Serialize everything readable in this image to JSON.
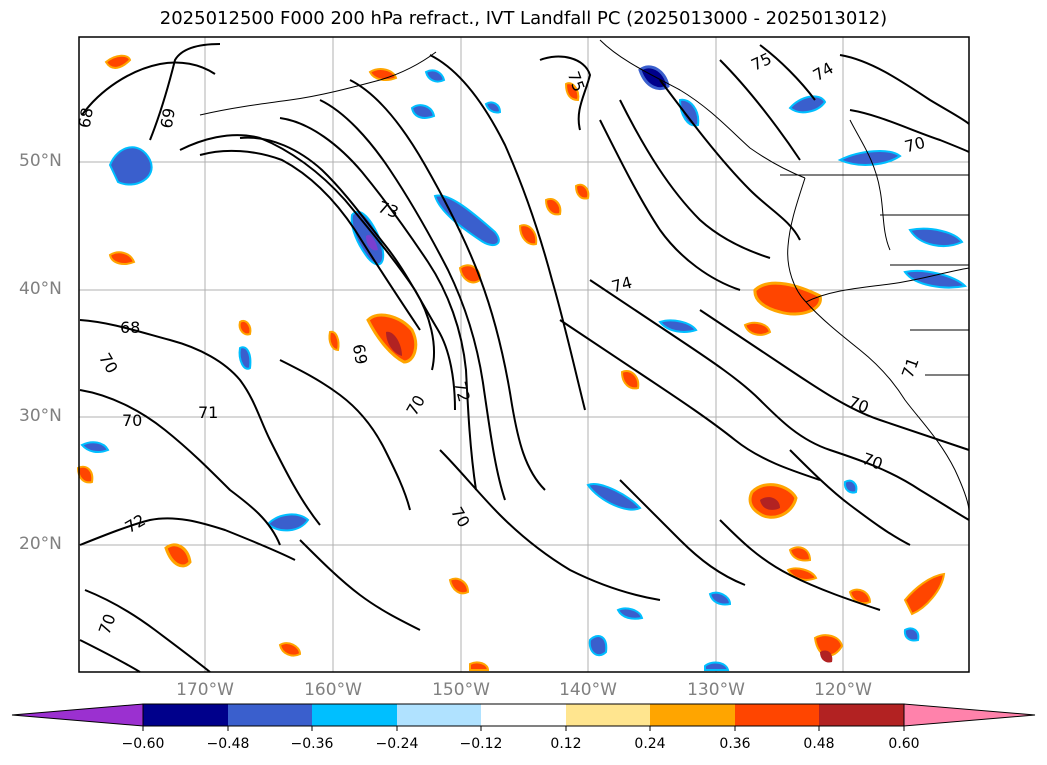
{
  "title": "2025012500 F000 200 hPa refract., IVT Landfall PC (2025013000 - 2025013012)",
  "lat_labels": [
    "50°N",
    "40°N",
    "30°N",
    "20°N"
  ],
  "lon_labels": [
    "170°W",
    "160°W",
    "150°W",
    "140°W",
    "130°W",
    "120°W"
  ],
  "contour_labels": [
    "68",
    "69",
    "75",
    "75",
    "74",
    "70",
    "73",
    "74",
    "69",
    "68",
    "70",
    "72",
    "70",
    "70",
    "71",
    "70",
    "72",
    "71",
    "70",
    "70"
  ],
  "colorbar": {
    "ticks": [
      "−0.60",
      "−0.48",
      "−0.36",
      "−0.24",
      "−0.12",
      "0.12",
      "0.24",
      "0.36",
      "0.48",
      "0.60"
    ],
    "colors": [
      "#9b30d0",
      "#00008b",
      "#3a5fcd",
      "#00bfff",
      "#b0e2ff",
      "#ffffff",
      "#ffe58f",
      "#ffa500",
      "#ff4500",
      "#b22222",
      "#ff82ab"
    ]
  }
}
